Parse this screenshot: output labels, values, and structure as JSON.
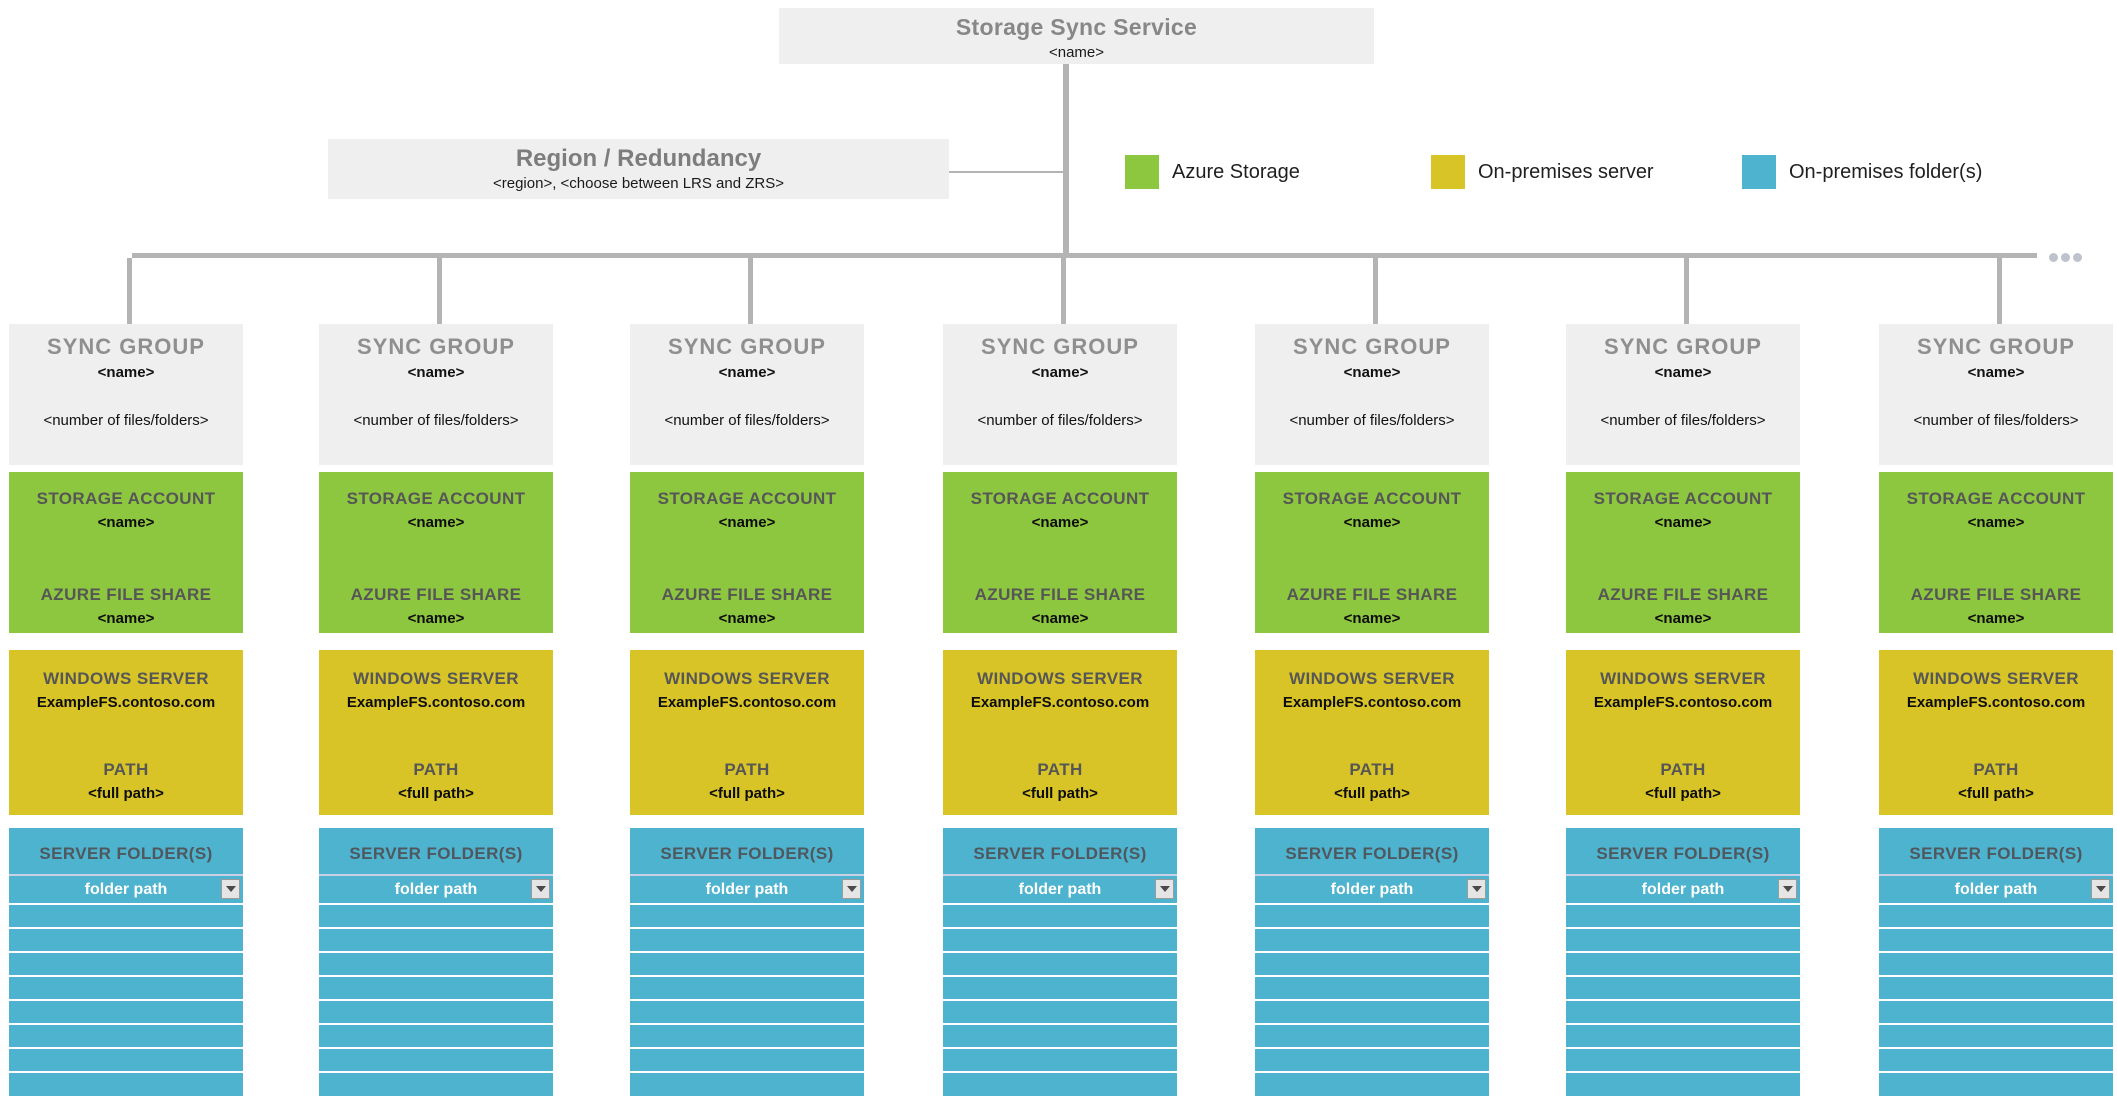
{
  "service": {
    "title": "Storage Sync Service",
    "name": "<name>"
  },
  "region": {
    "title": "Region / Redundancy",
    "subtitle": "<region>, <choose between LRS and ZRS>"
  },
  "legend": {
    "items": [
      {
        "label": "Azure Storage",
        "color": "#8dc63f"
      },
      {
        "label": "On-premises server",
        "color": "#d8c427"
      },
      {
        "label": "On-premises folder(s)",
        "color": "#4db3ce"
      }
    ]
  },
  "colors": {
    "azure_storage_green": "#8dc63f",
    "on_premises_server_yellow": "#d8c427",
    "on_premises_folders_teal": "#4db3ce",
    "box_background_gray": "#efefef",
    "connector_gray": "#b4b4b4"
  },
  "sync_groups": [
    {
      "title": "SYNC GROUP",
      "name": "<name>",
      "count_placeholder": "<number of files/folders>",
      "storage_account": {
        "label": "STORAGE ACCOUNT",
        "name": "<name>"
      },
      "file_share": {
        "label": "AZURE FILE SHARE",
        "name": "<name>"
      },
      "server": {
        "label": "WINDOWS SERVER",
        "name": "ExampleFS.contoso.com"
      },
      "path": {
        "label": "PATH",
        "value": "<full path>"
      },
      "folders": {
        "label": "SERVER FOLDER(S)",
        "first_row": "folder path",
        "empty_rows": 8
      }
    },
    {
      "title": "SYNC GROUP",
      "name": "<name>",
      "count_placeholder": "<number of files/folders>",
      "storage_account": {
        "label": "STORAGE ACCOUNT",
        "name": "<name>"
      },
      "file_share": {
        "label": "AZURE FILE SHARE",
        "name": "<name>"
      },
      "server": {
        "label": "WINDOWS SERVER",
        "name": "ExampleFS.contoso.com"
      },
      "path": {
        "label": "PATH",
        "value": "<full path>"
      },
      "folders": {
        "label": "SERVER FOLDER(S)",
        "first_row": "folder path",
        "empty_rows": 8
      }
    },
    {
      "title": "SYNC GROUP",
      "name": "<name>",
      "count_placeholder": "<number of files/folders>",
      "storage_account": {
        "label": "STORAGE ACCOUNT",
        "name": "<name>"
      },
      "file_share": {
        "label": "AZURE FILE SHARE",
        "name": "<name>"
      },
      "server": {
        "label": "WINDOWS SERVER",
        "name": "ExampleFS.contoso.com"
      },
      "path": {
        "label": "PATH",
        "value": "<full path>"
      },
      "folders": {
        "label": "SERVER FOLDER(S)",
        "first_row": "folder path",
        "empty_rows": 8
      }
    },
    {
      "title": "SYNC GROUP",
      "name": "<name>",
      "count_placeholder": "<number of files/folders>",
      "storage_account": {
        "label": "STORAGE ACCOUNT",
        "name": "<name>"
      },
      "file_share": {
        "label": "AZURE FILE SHARE",
        "name": "<name>"
      },
      "server": {
        "label": "WINDOWS SERVER",
        "name": "ExampleFS.contoso.com"
      },
      "path": {
        "label": "PATH",
        "value": "<full path>"
      },
      "folders": {
        "label": "SERVER FOLDER(S)",
        "first_row": "folder path",
        "empty_rows": 8
      }
    },
    {
      "title": "SYNC GROUP",
      "name": "<name>",
      "count_placeholder": "<number of files/folders>",
      "storage_account": {
        "label": "STORAGE ACCOUNT",
        "name": "<name>"
      },
      "file_share": {
        "label": "AZURE FILE SHARE",
        "name": "<name>"
      },
      "server": {
        "label": "WINDOWS SERVER",
        "name": "ExampleFS.contoso.com"
      },
      "path": {
        "label": "PATH",
        "value": "<full path>"
      },
      "folders": {
        "label": "SERVER FOLDER(S)",
        "first_row": "folder path",
        "empty_rows": 8
      }
    },
    {
      "title": "SYNC GROUP",
      "name": "<name>",
      "count_placeholder": "<number of files/folders>",
      "storage_account": {
        "label": "STORAGE ACCOUNT",
        "name": "<name>"
      },
      "file_share": {
        "label": "AZURE FILE SHARE",
        "name": "<name>"
      },
      "server": {
        "label": "WINDOWS SERVER",
        "name": "ExampleFS.contoso.com"
      },
      "path": {
        "label": "PATH",
        "value": "<full path>"
      },
      "folders": {
        "label": "SERVER FOLDER(S)",
        "first_row": "folder path",
        "empty_rows": 8
      }
    },
    {
      "title": "SYNC GROUP",
      "name": "<name>",
      "count_placeholder": "<number of files/folders>",
      "storage_account": {
        "label": "STORAGE ACCOUNT",
        "name": "<name>"
      },
      "file_share": {
        "label": "AZURE FILE SHARE",
        "name": "<name>"
      },
      "server": {
        "label": "WINDOWS SERVER",
        "name": "ExampleFS.contoso.com"
      },
      "path": {
        "label": "PATH",
        "value": "<full path>"
      },
      "folders": {
        "label": "SERVER FOLDER(S)",
        "first_row": "folder path",
        "empty_rows": 8
      }
    }
  ],
  "more_groups_indicator": "..."
}
